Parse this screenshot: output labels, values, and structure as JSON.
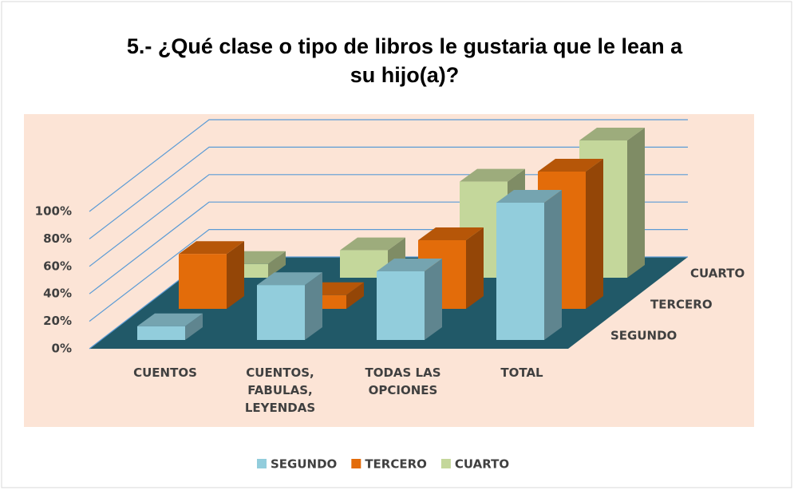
{
  "chart_data": {
    "type": "bar3d",
    "title": "5.- ¿Qué clase o tipo de libros le gustaria que le lean a su hijo(a)?",
    "categories": [
      "CUENTOS",
      "CUENTOS, FABULAS, LEYENDAS",
      "TODAS LAS OPCIONES",
      "TOTAL"
    ],
    "series": [
      {
        "name": "SEGUNDO",
        "color": "#92cddc",
        "values": [
          10,
          40,
          50,
          100
        ]
      },
      {
        "name": "TERCERO",
        "color": "#e36c0a",
        "values": [
          40,
          10,
          50,
          100
        ]
      },
      {
        "name": "CUARTO",
        "color": "#c4d79b",
        "values": [
          10,
          20,
          70,
          100
        ]
      }
    ],
    "ylim": [
      0,
      100
    ],
    "yticks": [
      {
        "value": 0,
        "label": "0%"
      },
      {
        "value": 20,
        "label": "20%"
      },
      {
        "value": 40,
        "label": "40%"
      },
      {
        "value": 60,
        "label": "60%"
      },
      {
        "value": 80,
        "label": "80%"
      },
      {
        "value": 100,
        "label": "100%"
      }
    ],
    "grid": true,
    "legend": "bottom"
  }
}
